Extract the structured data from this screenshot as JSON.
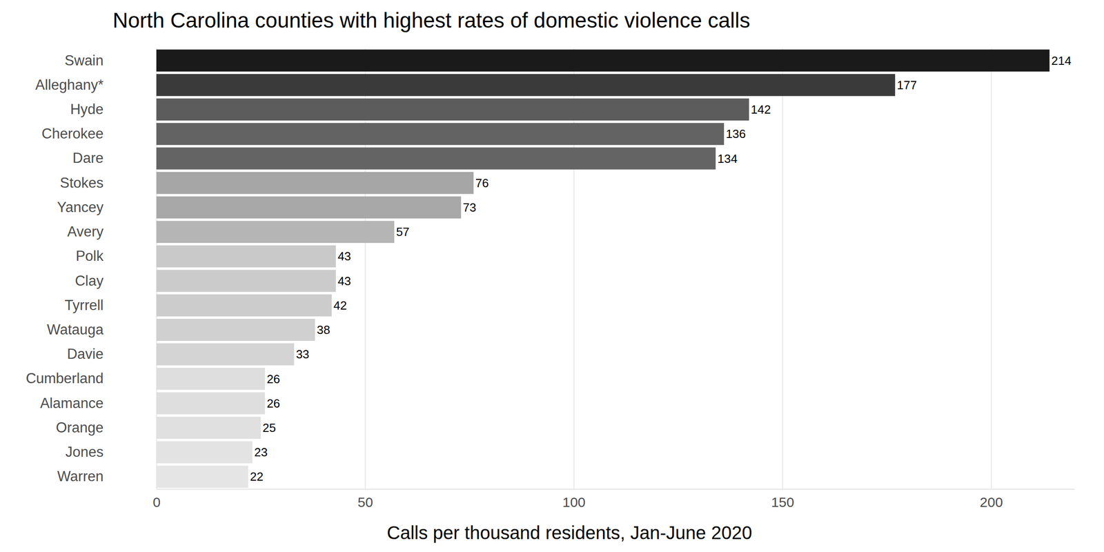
{
  "chart_data": {
    "type": "bar",
    "orientation": "horizontal",
    "title": "North Carolina counties with highest rates of domestic violence calls",
    "xlabel": "Calls per thousand residents, Jan-June 2020",
    "categories": [
      "Swain",
      "Alleghany*",
      "Hyde",
      "Cherokee",
      "Dare",
      "Stokes",
      "Yancey",
      "Avery",
      "Polk",
      "Clay",
      "Tyrrell",
      "Watauga",
      "Davie",
      "Cumberland",
      "Alamance",
      "Orange",
      "Jones",
      "Warren"
    ],
    "values": [
      214,
      177,
      142,
      136,
      134,
      76,
      73,
      57,
      43,
      43,
      42,
      38,
      33,
      26,
      26,
      25,
      23,
      22
    ],
    "colors": [
      "#1a1a1a",
      "#3a3a3a",
      "#5c5c5c",
      "#636363",
      "#646464",
      "#a6a6a6",
      "#a8a8a8",
      "#b5b5b5",
      "#c9c9c9",
      "#cbcbcb",
      "#cccccc",
      "#d0d0d0",
      "#d4d4d4",
      "#dedede",
      "#dedede",
      "#e0e0e0",
      "#e3e3e3",
      "#e5e5e5"
    ],
    "xlim": [
      0,
      220
    ],
    "xticks": [
      0,
      50,
      100,
      150,
      200
    ],
    "grid": true,
    "data_labels": true
  }
}
